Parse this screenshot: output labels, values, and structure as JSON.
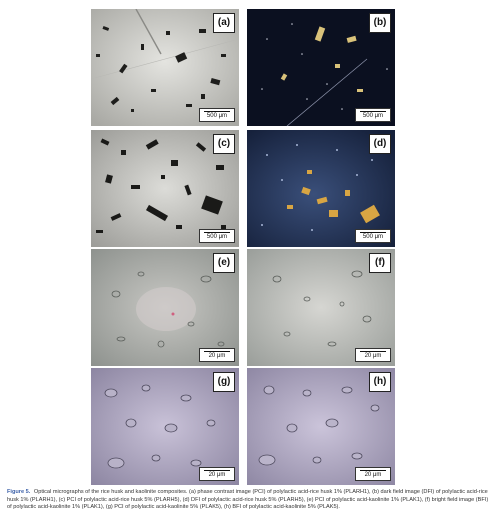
{
  "panels": [
    {
      "label": "(a)",
      "scale": "500 μm"
    },
    {
      "label": "(b)",
      "scale": "500 μm"
    },
    {
      "label": "(c)",
      "scale": "500 μm"
    },
    {
      "label": "(d)",
      "scale": "500 μm"
    },
    {
      "label": "(e)",
      "scale": "20 μm"
    },
    {
      "label": "(f)",
      "scale": "20 μm"
    },
    {
      "label": "(g)",
      "scale": "20 μm"
    },
    {
      "label": "(h)",
      "scale": "20 μm"
    }
  ],
  "caption": {
    "figure_label": "Figure 5.",
    "text": "Optical micrographs of the rice husk and kaolinite composites. (a) phase contrast image (PCI) of polylactic acid-rice husk 1% (PLARH1), (b) dark field image (DFI) of polylactic acid-rice husk 1% (PLARH1), (c) PCI of polylactic acid-rice husk 5% (PLARH5), (d) DFI of polylactic acid-rice husk 5% (PLARH5), (e) PCI of polylactic acid-kaolinite 1% (PLAK1), (f) bright field image (BFI) of polylactic acid-kaolinite 1% (PLAK1), (g) PCI of polylactic acid-kaolinite 5% (PLAK5), (h) BFI of polylactic acid-kaolinite 5% (PLAK5)."
  }
}
